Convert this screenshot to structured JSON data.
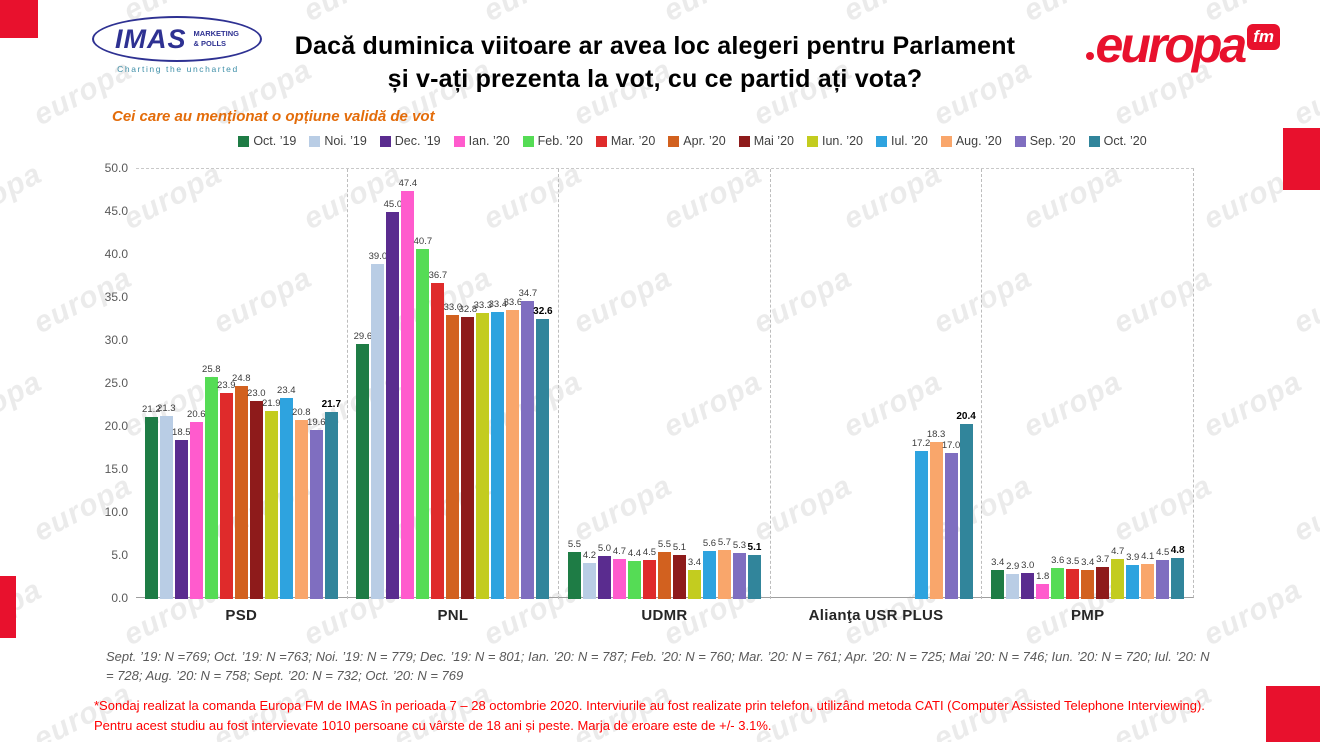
{
  "header": {
    "imas_logo": {
      "name": "IMAS",
      "subtitle": "MARKETING\n& POLLS",
      "tagline": "Charting the uncharted"
    },
    "title_line1": "Dacă duminica viitoare ar avea loc alegeri pentru Parlament",
    "title_line2": "și v-ați prezenta la vot, cu ce partid ați vota?",
    "europa_logo": {
      "name": "europa",
      "fm": "fm"
    }
  },
  "chart_data": {
    "type": "bar",
    "subtitle": "Cei care au menționat o opțiune validă de vot",
    "categories": [
      "PSD",
      "PNL",
      "UDMR",
      "Alianţa USR PLUS",
      "PMP"
    ],
    "y_axis": {
      "min": 0,
      "max": 50,
      "step": 5
    },
    "grid": "dashed-vertical-separators",
    "legend_position": "top",
    "series": [
      {
        "name": "Oct. ’19",
        "color": "#1E7C45",
        "values": [
          21.2,
          29.6,
          5.5,
          null,
          3.4
        ]
      },
      {
        "name": "Noi. ’19",
        "color": "#B9CDE5",
        "values": [
          21.3,
          39.0,
          4.2,
          null,
          2.9
        ]
      },
      {
        "name": "Dec. ’19",
        "color": "#5A2C8F",
        "values": [
          18.5,
          45.0,
          5.0,
          null,
          3.0
        ]
      },
      {
        "name": "Ian. ’20",
        "color": "#FF5BCD",
        "values": [
          20.6,
          47.4,
          4.7,
          null,
          1.8
        ]
      },
      {
        "name": "Feb. ’20",
        "color": "#55DC55",
        "values": [
          25.8,
          40.7,
          4.4,
          null,
          3.6
        ]
      },
      {
        "name": "Mar. ’20",
        "color": "#DF2B2B",
        "values": [
          23.9,
          36.7,
          4.5,
          null,
          3.5
        ]
      },
      {
        "name": "Apr. ’20",
        "color": "#D2611F",
        "values": [
          24.8,
          33.0,
          5.5,
          null,
          3.4
        ]
      },
      {
        "name": "Mai ’20",
        "color": "#8E1B1B",
        "values": [
          23.0,
          32.8,
          5.1,
          null,
          3.7
        ]
      },
      {
        "name": "Iun. ’20",
        "color": "#C3CC1F",
        "values": [
          21.9,
          33.3,
          3.4,
          null,
          4.7
        ]
      },
      {
        "name": "Iul. ’20",
        "color": "#2EA3DF",
        "values": [
          23.4,
          33.4,
          5.6,
          17.2,
          3.9
        ]
      },
      {
        "name": "Aug. ’20",
        "color": "#F9A66B",
        "values": [
          20.8,
          33.6,
          5.7,
          18.3,
          4.1
        ]
      },
      {
        "name": "Sep. ’20",
        "color": "#7F6EC0",
        "values": [
          19.6,
          34.7,
          5.3,
          17.0,
          4.5
        ]
      },
      {
        "name": "Oct. ’20",
        "color": "#31859B",
        "values": [
          21.7,
          32.6,
          5.1,
          20.4,
          4.8
        ]
      }
    ],
    "bold_last_series": true
  },
  "footnotes": {
    "sample_sizes": "Sept. ’19: N =769; Oct. ’19: N =763; Noi. ’19: N = 779; Dec. ’19: N = 801; Ian. ’20: N = 787; Feb. ’20: N = 760; Mar. ’20: N = 761; Apr. ’20: N = 725; Mai ’20: N = 746; Iun. ’20: N = 720; Iul. ’20: N = 728; Aug. ’20: N = 758; Sept. ’20: N = 732; Oct. ’20: N = 769",
    "methodology_line1": "*Sondaj realizat la comanda Europa FM de IMAS în perioada  7 – 28 octombrie 2020. Interviurile au fost realizate prin telefon, utilizând metoda CATI (Computer Assisted Telephone Interviewing).",
    "methodology_line2": "Pentru acest studiu au fost intervievate 1010 persoane cu vârste de 18 ani și peste. Marja de eroare este de +/- 3.1%."
  },
  "watermark": {
    "text": "europa",
    "accent_color": "#E8112D"
  }
}
